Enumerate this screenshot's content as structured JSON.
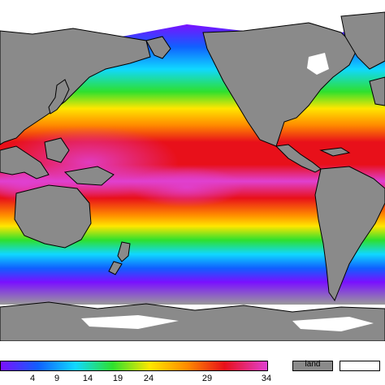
{
  "map": {
    "description_colors": {
      "land": "#8a8a8a",
      "land_dark": "#6d6d6d",
      "no_data": "#ffffff",
      "ocean_pink": "#e040d0",
      "ocean_red": "#e8101a",
      "ocean_orange": "#ff8a00",
      "ocean_yellow": "#ffe600",
      "ocean_green": "#2ee02e",
      "ocean_cyan": "#10d8ff",
      "ocean_blue": "#1060ff",
      "ocean_violet": "#7a10ff"
    }
  },
  "legend": {
    "colorbar_ticks": [
      "4",
      "9",
      "14",
      "19",
      "24",
      "29",
      "34"
    ],
    "colorbar_stops": [
      "#7a10ff",
      "#1060ff",
      "#10d8ff",
      "#2ee02e",
      "#ffe600",
      "#ff8a00",
      "#e8101a",
      "#e040d0"
    ],
    "land_label": "land"
  }
}
